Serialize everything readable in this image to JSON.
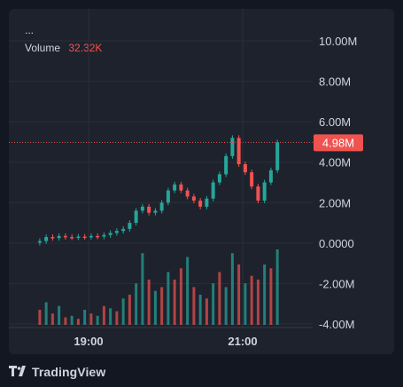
{
  "header": {
    "menu_label": "...",
    "volume_label": "Volume",
    "volume_value": "32.32K"
  },
  "footer": {
    "brand": "TradingView"
  },
  "colors": {
    "up": "#26a69a",
    "down": "#ef5350",
    "price_line": "#ef5350",
    "grid": "#2a2e39",
    "axis_text": "#d1d4dc"
  },
  "chart_data": {
    "type": "candlestick",
    "ylim": [
      -4000000,
      11000000
    ],
    "y_ticks": [
      {
        "value": 10000000,
        "label": "10.00M"
      },
      {
        "value": 8000000,
        "label": "8.00M"
      },
      {
        "value": 6000000,
        "label": "6.00M"
      },
      {
        "value": 4000000,
        "label": "4.00M"
      },
      {
        "value": 2000000,
        "label": "2.00M"
      },
      {
        "value": 0,
        "label": "0.0000"
      },
      {
        "value": -2000000,
        "label": "-2.00M"
      },
      {
        "value": -4000000,
        "label": "-4.00M"
      }
    ],
    "x_ticks": [
      {
        "time": "19:00",
        "label": "19:00"
      },
      {
        "time": "21:00",
        "label": "21:00"
      }
    ],
    "x_range": [
      "18:00",
      "22:00"
    ],
    "last_price": {
      "value": 4980000,
      "label": "4.98M"
    },
    "price_series": [
      [
        "18:22",
        0.02,
        0.1
      ],
      [
        "18:27",
        0.1,
        0.3
      ],
      [
        "18:32",
        0.3,
        0.25
      ],
      [
        "18:37",
        0.25,
        0.35
      ],
      [
        "18:42",
        0.35,
        0.3
      ],
      [
        "18:47",
        0.3,
        0.28
      ],
      [
        "18:52",
        0.28,
        0.32
      ],
      [
        "18:57",
        0.32,
        0.3
      ],
      [
        "19:02",
        0.3,
        0.35
      ],
      [
        "19:07",
        0.35,
        0.32
      ],
      [
        "19:12",
        0.32,
        0.4
      ],
      [
        "19:17",
        0.4,
        0.5
      ],
      [
        "19:22",
        0.5,
        0.6
      ],
      [
        "19:27",
        0.6,
        0.7
      ],
      [
        "19:32",
        0.7,
        1.0
      ],
      [
        "19:37",
        1.0,
        1.6
      ],
      [
        "19:42",
        1.6,
        1.8
      ],
      [
        "19:47",
        1.8,
        1.5
      ],
      [
        "19:52",
        1.5,
        1.6
      ],
      [
        "19:57",
        1.6,
        2.0
      ],
      [
        "20:02",
        2.0,
        2.6
      ],
      [
        "20:07",
        2.6,
        2.9
      ],
      [
        "20:12",
        2.9,
        2.6
      ],
      [
        "20:17",
        2.6,
        2.3
      ],
      [
        "20:22",
        2.3,
        2.1
      ],
      [
        "20:27",
        2.1,
        1.8
      ],
      [
        "20:32",
        1.8,
        2.2
      ],
      [
        "20:37",
        2.2,
        3.0
      ],
      [
        "20:42",
        3.0,
        3.4
      ],
      [
        "20:47",
        3.4,
        4.3
      ],
      [
        "20:52",
        4.3,
        5.2
      ],
      [
        "20:57",
        5.2,
        3.9
      ],
      [
        "21:02",
        3.9,
        3.5
      ],
      [
        "21:07",
        3.5,
        2.8
      ],
      [
        "21:12",
        2.8,
        2.1
      ],
      [
        "21:17",
        2.1,
        3.0
      ],
      [
        "21:22",
        3.0,
        3.6
      ],
      [
        "21:27",
        3.6,
        4.98
      ]
    ],
    "volume_series": [
      [
        "18:22",
        0.2,
        "down"
      ],
      [
        "18:27",
        0.3,
        "up"
      ],
      [
        "18:32",
        0.15,
        "down"
      ],
      [
        "18:37",
        0.25,
        "up"
      ],
      [
        "18:42",
        0.1,
        "down"
      ],
      [
        "18:47",
        0.12,
        "up"
      ],
      [
        "18:52",
        0.08,
        "down"
      ],
      [
        "18:57",
        0.2,
        "up"
      ],
      [
        "19:02",
        0.15,
        "down"
      ],
      [
        "19:07",
        0.12,
        "up"
      ],
      [
        "19:12",
        0.25,
        "down"
      ],
      [
        "19:17",
        0.22,
        "up"
      ],
      [
        "19:22",
        0.18,
        "down"
      ],
      [
        "19:27",
        0.35,
        "up"
      ],
      [
        "19:32",
        0.4,
        "down"
      ],
      [
        "19:37",
        0.55,
        "up"
      ],
      [
        "19:42",
        0.95,
        "up"
      ],
      [
        "19:47",
        0.6,
        "down"
      ],
      [
        "19:52",
        0.45,
        "up"
      ],
      [
        "19:57",
        0.5,
        "down"
      ],
      [
        "20:02",
        0.7,
        "up"
      ],
      [
        "20:07",
        0.6,
        "down"
      ],
      [
        "20:12",
        0.75,
        "down"
      ],
      [
        "20:17",
        0.9,
        "up"
      ],
      [
        "20:22",
        0.5,
        "down"
      ],
      [
        "20:27",
        0.4,
        "up"
      ],
      [
        "20:32",
        0.35,
        "down"
      ],
      [
        "20:37",
        0.55,
        "up"
      ],
      [
        "20:42",
        0.7,
        "down"
      ],
      [
        "20:47",
        0.5,
        "up"
      ],
      [
        "20:52",
        0.95,
        "up"
      ],
      [
        "20:57",
        0.8,
        "down"
      ],
      [
        "21:02",
        0.55,
        "up"
      ],
      [
        "21:07",
        0.65,
        "down"
      ],
      [
        "21:12",
        0.6,
        "down"
      ],
      [
        "21:17",
        0.8,
        "up"
      ],
      [
        "21:22",
        0.75,
        "down"
      ],
      [
        "21:27",
        1.0,
        "up"
      ]
    ]
  }
}
